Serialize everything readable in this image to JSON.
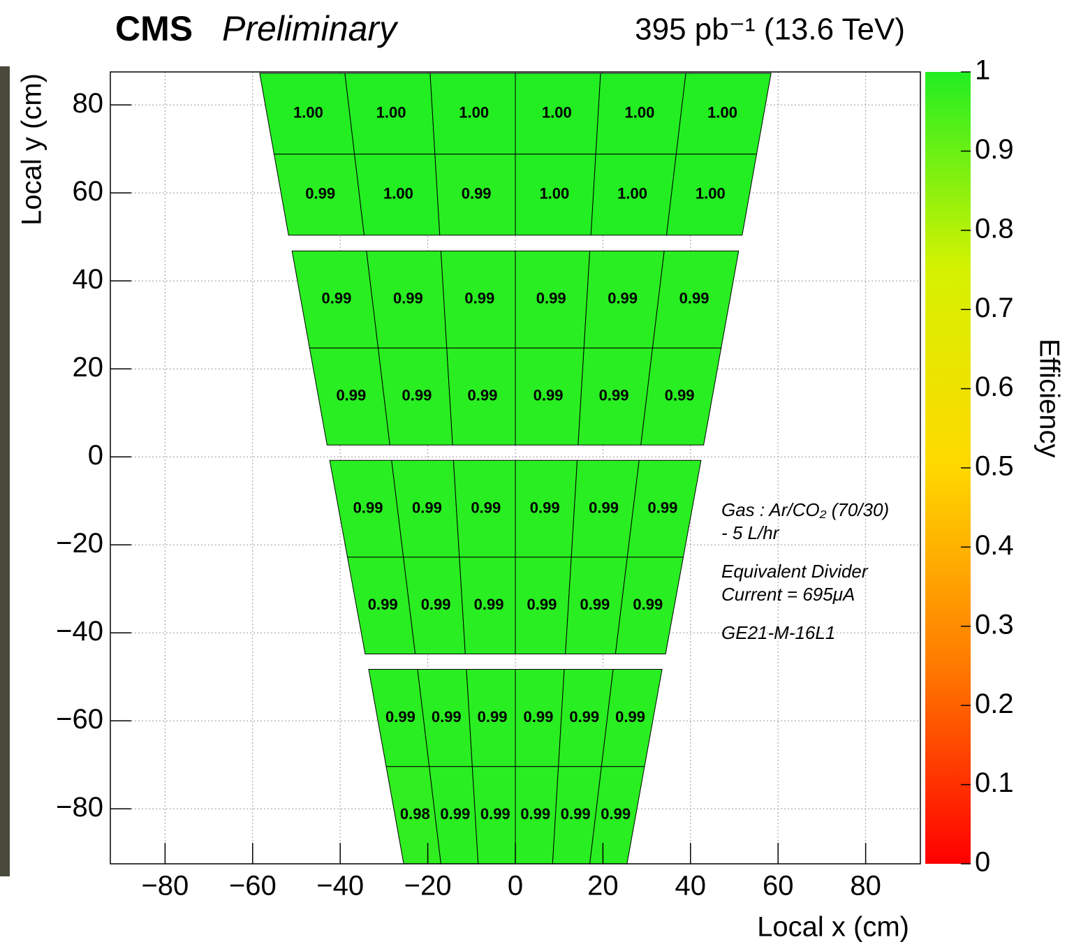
{
  "chart_data": {
    "type": "efficiency-map",
    "experiment": "CMS",
    "status": "Preliminary",
    "luminosity": "395 pb⁻¹ (13.6 TeV)",
    "x_label": "Local x (cm)",
    "y_label": "Local y (cm)",
    "z_label": "Efficiency",
    "annotations": [
      "Gas : Ar/CO₂ (70/30)",
      "- 5 L/hr",
      "Equivalent Divider",
      "Current = 695μA",
      "GE21-M-16L1"
    ],
    "xlim": [
      -92.5,
      92.5
    ],
    "ylim": [
      -92.5,
      87.5
    ],
    "xticks": [
      {
        "value": -80,
        "label": "−80"
      },
      {
        "value": -60,
        "label": "−60"
      },
      {
        "value": -40,
        "label": "−40"
      },
      {
        "value": -20,
        "label": "−20"
      },
      0,
      20,
      40,
      60,
      80
    ],
    "yticks": [
      {
        "value": -80,
        "label": "−80"
      },
      {
        "value": -60,
        "label": "−60"
      },
      {
        "value": -40,
        "label": "−40"
      },
      {
        "value": -20,
        "label": "−20"
      },
      0,
      20,
      40,
      60,
      80
    ],
    "zlim": [
      0,
      1
    ],
    "zticks": [
      0,
      0.1,
      0.2,
      0.3,
      0.4,
      0.5,
      0.6,
      0.7,
      0.8,
      0.9,
      1
    ],
    "colormap": [
      "#ff0000",
      "#ff7a00",
      "#ffd800",
      "#d6f200",
      "#22ee22"
    ],
    "grid": true,
    "modules": [
      {
        "y": [
          87.2,
          50.4
        ],
        "half_width": [
          58.4,
          51.8
        ],
        "rows": [
          {
            "values": [
              1,
              1,
              1,
              1,
              1,
              1
            ],
            "value_labels": [
              "1.00",
              "1.00",
              "1.00",
              "1.00",
              "1.00",
              "1.00"
            ]
          },
          {
            "values": [
              0.99,
              1,
              0.99,
              1,
              1,
              1
            ],
            "value_labels": [
              "0.99",
              "1.00",
              "0.99",
              "1.00",
              "1.00",
              "1.00"
            ]
          }
        ]
      },
      {
        "y": [
          46.8,
          2.7
        ],
        "half_width": [
          51,
          43
        ],
        "rows": [
          {
            "values": [
              0.99,
              0.99,
              0.99,
              0.99,
              0.99,
              0.99
            ],
            "value_labels": [
              "0.99",
              "0.99",
              "0.99",
              "0.99",
              "0.99",
              "0.99"
            ]
          },
          {
            "values": [
              0.99,
              0.99,
              0.99,
              0.99,
              0.99,
              0.99
            ],
            "value_labels": [
              "0.99",
              "0.99",
              "0.99",
              "0.99",
              "0.99",
              "0.99"
            ]
          }
        ]
      },
      {
        "y": [
          -0.8,
          -44.8
        ],
        "half_width": [
          42.4,
          34.3
        ],
        "rows": [
          {
            "values": [
              0.99,
              0.99,
              0.99,
              0.99,
              0.99,
              0.99
            ],
            "value_labels": [
              "0.99",
              "0.99",
              "0.99",
              "0.99",
              "0.99",
              "0.99"
            ]
          },
          {
            "values": [
              0.99,
              0.99,
              0.99,
              0.99,
              0.99,
              0.99
            ],
            "value_labels": [
              "0.99",
              "0.99",
              "0.99",
              "0.99",
              "0.99",
              "0.99"
            ]
          }
        ]
      },
      {
        "y": [
          -48.3,
          -92.5
        ],
        "half_width": [
          33.5,
          25.5
        ],
        "rows": [
          {
            "values": [
              0.99,
              0.99,
              0.99,
              0.99,
              0.99,
              0.99
            ],
            "value_labels": [
              "0.99",
              "0.99",
              "0.99",
              "0.99",
              "0.99",
              "0.99"
            ]
          },
          {
            "values": [
              0.98,
              0.99,
              0.99,
              0.99,
              0.99,
              0.99
            ],
            "value_labels": [
              "0.98",
              "0.99",
              "0.99",
              "0.99",
              "0.99",
              "0.99"
            ]
          }
        ]
      }
    ]
  }
}
